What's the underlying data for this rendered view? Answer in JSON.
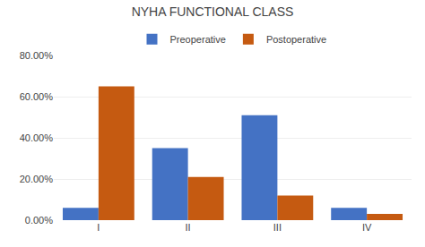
{
  "chart_data": {
    "type": "bar",
    "title": "NYHA FUNCTIONAL CLASS",
    "categories": [
      "I",
      "II",
      "III",
      "IV"
    ],
    "series": [
      {
        "name": "Preoperative",
        "color": "#4472C4",
        "values": [
          6.0,
          35.0,
          51.0,
          6.0
        ]
      },
      {
        "name": "Postoperative",
        "color": "#C55A11",
        "values": [
          65.0,
          21.0,
          12.0,
          3.0
        ]
      }
    ],
    "ylim": [
      0,
      80
    ],
    "yticks": [
      {
        "value": 0,
        "label": "0.00%"
      },
      {
        "value": 20,
        "label": "20.00%"
      },
      {
        "value": 40,
        "label": "40.00%"
      },
      {
        "value": 60,
        "label": "60.00%"
      },
      {
        "value": 80,
        "label": "80.00%"
      }
    ],
    "grid": true,
    "legend": "top"
  }
}
